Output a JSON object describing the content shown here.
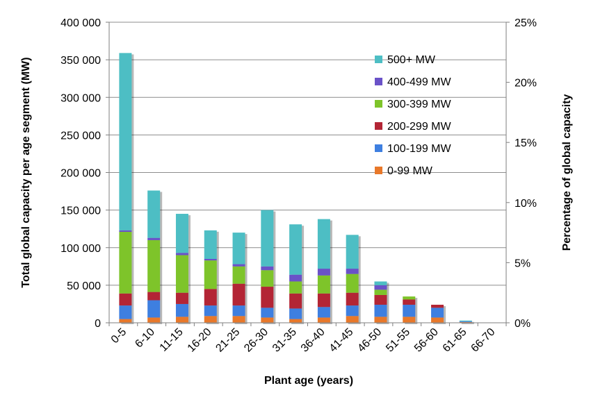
{
  "chart_data": {
    "type": "bar",
    "stacked": true,
    "title": "",
    "xlabel": "Plant age (years)",
    "ylabel": "Total global capacity per age segment (MW)",
    "y2label": "Percentage of global capacity",
    "ylim": [
      0,
      400000
    ],
    "y2lim": [
      0,
      25
    ],
    "yticks": [
      "0",
      "50 000",
      "100 000",
      "150 000",
      "200 000",
      "250 000",
      "300 000",
      "350 000",
      "400 000"
    ],
    "y2ticks": [
      "0%",
      "5%",
      "10%",
      "15%",
      "20%",
      "25%"
    ],
    "grid": true,
    "legend_position": "top-right",
    "categories": [
      "0-5",
      "6-10",
      "11-15",
      "16-20",
      "21-25",
      "26-30",
      "31-35",
      "36-40",
      "41-45",
      "46-50",
      "51-55",
      "56-60",
      "61-65",
      "66-70"
    ],
    "series": [
      {
        "name": "0-99 MW",
        "color": "#e8782a",
        "values": [
          5000,
          7000,
          8000,
          9000,
          9000,
          7000,
          5000,
          7000,
          9000,
          8000,
          8000,
          7000,
          1000,
          0
        ]
      },
      {
        "name": "100-199 MW",
        "color": "#3e7fe0",
        "values": [
          18000,
          23000,
          17000,
          14000,
          14000,
          13000,
          14000,
          14000,
          14000,
          16000,
          16000,
          13000,
          1000,
          0
        ]
      },
      {
        "name": "200-299 MW",
        "color": "#b32535",
        "values": [
          16000,
          11000,
          15000,
          22000,
          29000,
          28000,
          20000,
          18000,
          17000,
          13000,
          7000,
          4000,
          0,
          0
        ]
      },
      {
        "name": "300-399 MW",
        "color": "#7ec42a",
        "values": [
          82000,
          69000,
          50000,
          38000,
          23000,
          22000,
          16000,
          24000,
          25000,
          7000,
          4000,
          0,
          0,
          0
        ]
      },
      {
        "name": "400-499 MW",
        "color": "#6a52c8",
        "values": [
          2000,
          3000,
          3000,
          2000,
          3000,
          5000,
          9000,
          9000,
          7000,
          6000,
          0,
          0,
          0,
          0
        ]
      },
      {
        "name": "500+ MW",
        "color": "#4dbec4",
        "values": [
          236000,
          63000,
          52000,
          38000,
          42000,
          75000,
          67000,
          66000,
          45000,
          5000,
          0,
          0,
          1000,
          0
        ]
      }
    ]
  }
}
